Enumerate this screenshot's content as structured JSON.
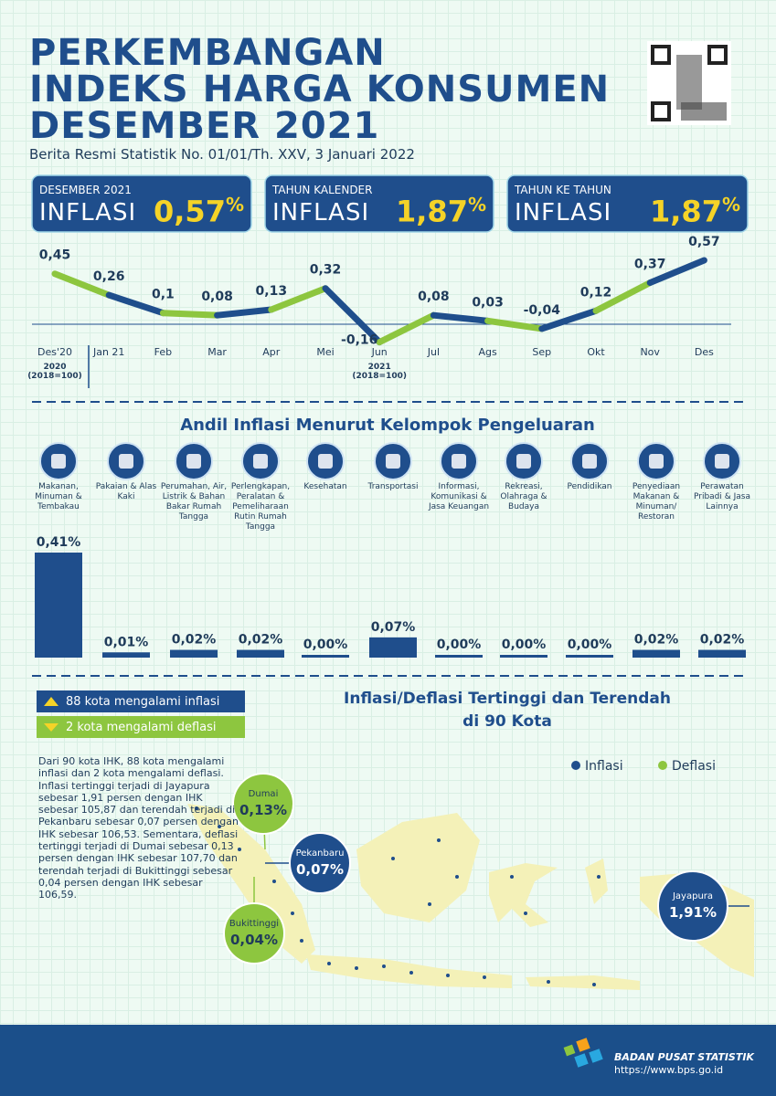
{
  "header": {
    "title_lines": [
      "PERKEMBANGAN",
      "INDEKS HARGA KONSUMEN",
      "DESEMBER 2021"
    ],
    "subtitle": "Berita Resmi Statistik No. 01/01/Th. XXV, 3 Januari 2022"
  },
  "cards": [
    {
      "period": "DESEMBER 2021",
      "label": "INFLASI",
      "value": "0,57",
      "unit": "%"
    },
    {
      "period": "TAHUN KALENDER",
      "label": "INFLASI",
      "value": "1,87",
      "unit": "%"
    },
    {
      "period": "TAHUN KE TAHUN",
      "label": "INFLASI",
      "value": "1,87",
      "unit": "%"
    }
  ],
  "chart_data": [
    {
      "type": "line",
      "categories": [
        "Des'20",
        "Jan 21",
        "Feb",
        "Mar",
        "Apr",
        "Mei",
        "Jun",
        "Jul",
        "Ags",
        "Sep",
        "Okt",
        "Nov",
        "Des"
      ],
      "values": [
        0.45,
        0.26,
        0.1,
        0.08,
        0.13,
        0.32,
        -0.16,
        0.08,
        0.03,
        -0.04,
        0.12,
        0.37,
        0.57
      ],
      "value_labels": [
        "0,45",
        "0,26",
        "0,1",
        "0,08",
        "0,13",
        "0,32",
        "-0,16",
        "0,08",
        "0,03",
        "-0,04",
        "0,12",
        "0,37",
        "0,57"
      ],
      "segment_colors": [
        "#8dc63f",
        "#1f4e8c"
      ],
      "year_notes": [
        {
          "year": "2020",
          "base": "(2018=100)"
        },
        {
          "year": "2021",
          "base": "(2018=100)"
        }
      ]
    },
    {
      "type": "bar",
      "title": "Andil Inflasi Menurut Kelompok Pengeluaran",
      "categories": [
        "Makanan, Minuman & Tembakau",
        "Pakaian & Alas Kaki",
        "Perumahan, Air, Listrik & Bahan Bakar Rumah Tangga",
        "Perlengkapan, Peralatan & Pemeliharaan Rutin Rumah Tangga",
        "Kesehatan",
        "Transportasi",
        "Informasi, Komunikasi & Jasa Keuangan",
        "Rekreasi, Olahraga & Budaya",
        "Pendidikan",
        "Penyediaan Makanan & Minuman/ Restoran",
        "Perawatan Pribadi & Jasa Lainnya"
      ],
      "values": [
        0.41,
        0.01,
        0.02,
        0.02,
        0.0,
        0.07,
        0.0,
        0.0,
        0.0,
        0.02,
        0.02
      ],
      "value_labels": [
        "0,41%",
        "0,01%",
        "0,02%",
        "0,02%",
        "0,00%",
        "0,07%",
        "0,00%",
        "0,00%",
        "0,00%",
        "0,02%",
        "0,02%"
      ],
      "color": "#1f4e8c"
    }
  ],
  "legend": {
    "items": [
      "88 kota mengalami inflasi",
      "2 kota mengalami deflasi"
    ]
  },
  "map": {
    "title_lines": [
      "Inflasi/Deflasi Tertinggi dan Terendah",
      "di 90 Kota"
    ],
    "legend": [
      {
        "label": "Inflasi",
        "color": "#1f4e8c"
      },
      {
        "label": "Deflasi",
        "color": "#8dc63f"
      }
    ],
    "description": "Dari 90 kota IHK, 88 kota mengalami inflasi dan 2 kota mengalami deflasi. Inflasi tertinggi terjadi di Jayapura sebesar 1,91 persen dengan IHK sebesar 105,87 dan terendah terjadi di Pekanbaru sebesar 0,07 persen dengan IHK sebesar 106,53. Sementara, deflasi tertinggi terjadi di Dumai sebesar 0,13 persen dengan IHK sebesar 107,70 dan terendah terjadi di Bukittinggi sebesar 0,04 persen dengan IHK sebesar 106,59.",
    "cities": [
      {
        "name": "Dumai",
        "value": "0,13%",
        "color": "#8dc63f"
      },
      {
        "name": "Pekanbaru",
        "value": "0,07%",
        "color": "#1f4e8c"
      },
      {
        "name": "Bukittinggi",
        "value": "0,04%",
        "color": "#8dc63f"
      },
      {
        "name": "Jayapura",
        "value": "1,91%",
        "color": "#1f4e8c"
      }
    ]
  },
  "footer": {
    "org": "BADAN PUSAT STATISTIK",
    "url": "https://www.bps.go.id"
  }
}
